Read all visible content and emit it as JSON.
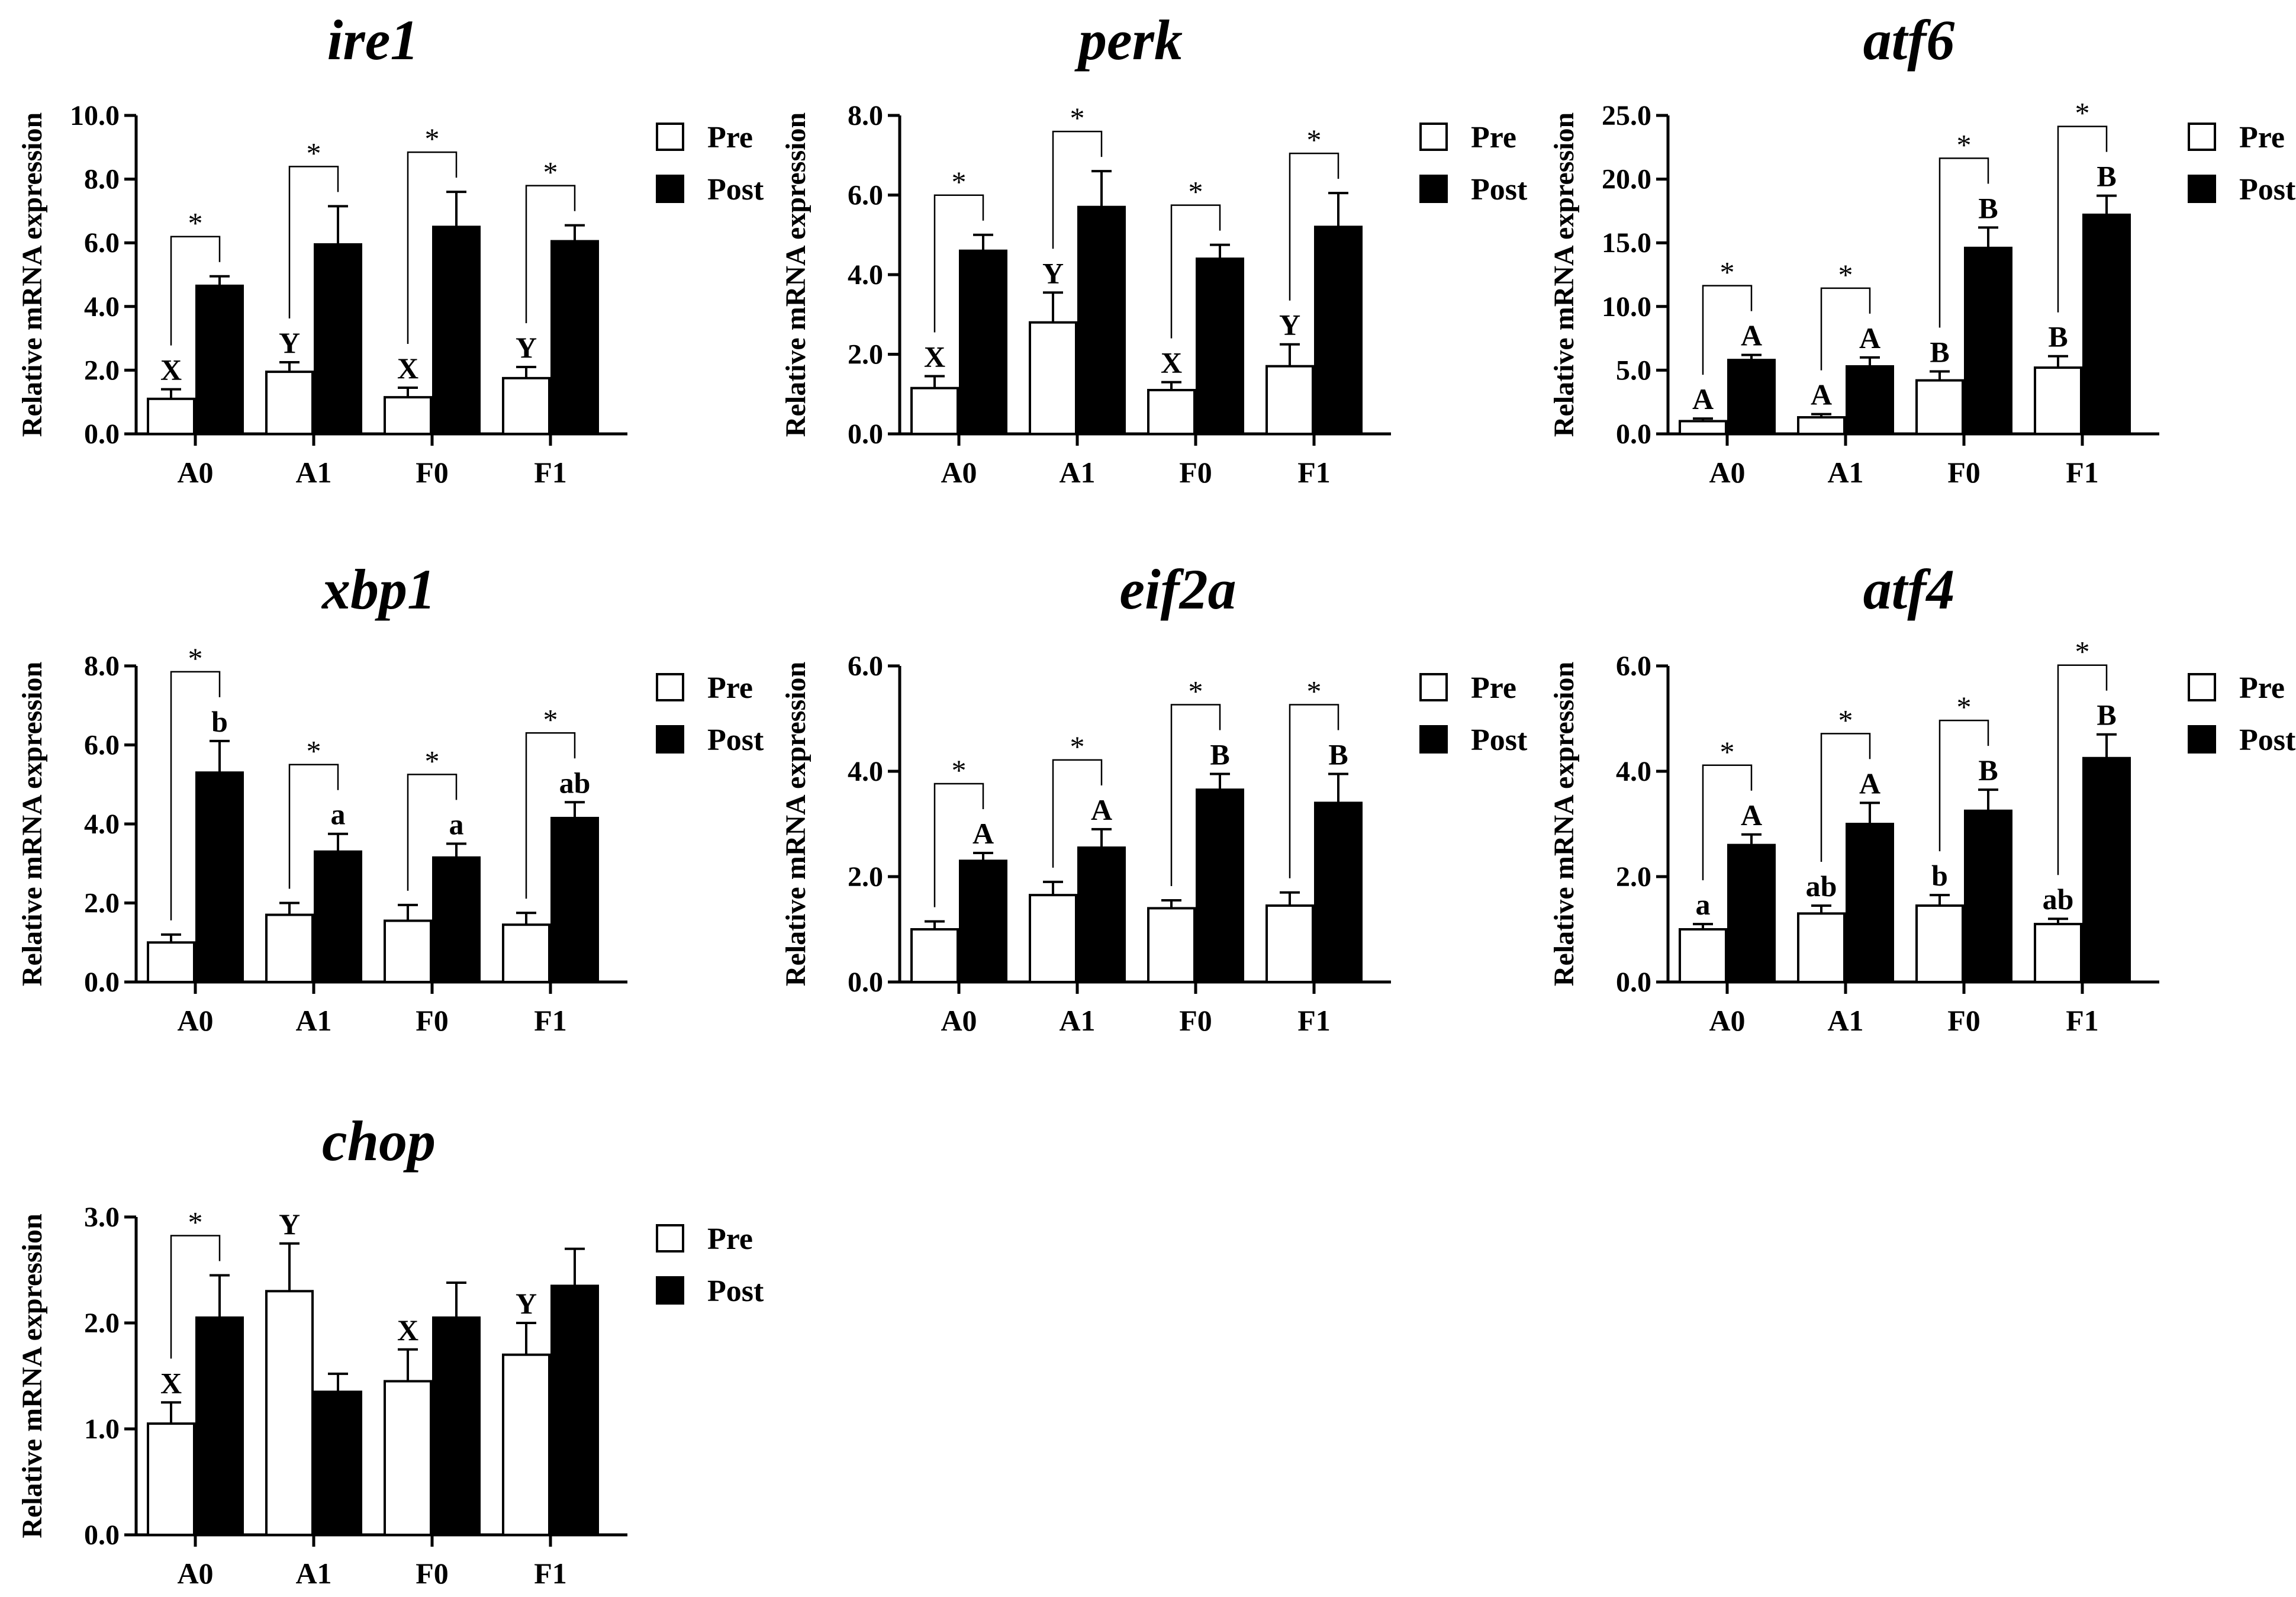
{
  "legend": {
    "pre": "Pre",
    "post": "Post"
  },
  "ylabel": "Relative mRNA expression",
  "colors": {
    "pre": "#ffffff",
    "post": "#000000",
    "stroke": "#000000"
  },
  "chart_data": [
    {
      "type": "bar",
      "title": "ire1",
      "ylabel": "Relative mRNA expression",
      "categories": [
        "A0",
        "A1",
        "F0",
        "F1"
      ],
      "ylim": [
        0,
        10
      ],
      "ticks": [
        "0.0",
        "2.0",
        "4.0",
        "6.0",
        "8.0",
        "10.0"
      ],
      "series": [
        {
          "name": "Pre",
          "values": [
            1.1,
            1.95,
            1.15,
            1.75
          ],
          "errors": [
            0.3,
            0.3,
            0.3,
            0.35
          ],
          "labels": [
            "X",
            "Y",
            "X",
            "Y"
          ]
        },
        {
          "name": "Post",
          "values": [
            4.65,
            5.95,
            6.5,
            6.05
          ],
          "errors": [
            0.3,
            1.2,
            1.1,
            0.5
          ],
          "labels": [
            "",
            "",
            "",
            ""
          ]
        }
      ],
      "significance": [
        "*",
        "*",
        "*",
        "*"
      ]
    },
    {
      "type": "bar",
      "title": "perk",
      "ylabel": "Relative mRNA expression",
      "categories": [
        "A0",
        "A1",
        "F0",
        "F1"
      ],
      "ylim": [
        0,
        8
      ],
      "ticks": [
        "0.0",
        "2.0",
        "4.0",
        "6.0",
        "8.0"
      ],
      "series": [
        {
          "name": "Pre",
          "values": [
            1.15,
            2.8,
            1.1,
            1.7
          ],
          "errors": [
            0.3,
            0.75,
            0.2,
            0.55
          ],
          "labels": [
            "X",
            "Y",
            "X",
            "Y"
          ]
        },
        {
          "name": "Post",
          "values": [
            4.6,
            5.7,
            4.4,
            5.2
          ],
          "errors": [
            0.4,
            0.9,
            0.35,
            0.85
          ],
          "labels": [
            "",
            "",
            "",
            ""
          ]
        }
      ],
      "significance": [
        "*",
        "*",
        "*",
        "*"
      ]
    },
    {
      "type": "bar",
      "title": "atf6",
      "ylabel": "Relative mRNA expression",
      "categories": [
        "A0",
        "A1",
        "F0",
        "F1"
      ],
      "ylim": [
        0,
        25
      ],
      "ticks": [
        "0.0",
        "5.0",
        "10.0",
        "15.0",
        "20.0",
        "25.0"
      ],
      "series": [
        {
          "name": "Pre",
          "values": [
            1.0,
            1.3,
            4.2,
            5.2
          ],
          "errors": [
            0.2,
            0.25,
            0.7,
            0.9
          ],
          "labels": [
            "A",
            "A",
            "B",
            "B"
          ]
        },
        {
          "name": "Post",
          "values": [
            5.8,
            5.3,
            14.6,
            17.2
          ],
          "errors": [
            0.4,
            0.7,
            1.6,
            1.5
          ],
          "labels": [
            "A",
            "A",
            "B",
            "B"
          ]
        }
      ],
      "significance": [
        "*",
        "*",
        "*",
        "*"
      ]
    },
    {
      "type": "bar",
      "title": "xbp1",
      "ylabel": "Relative mRNA expression",
      "categories": [
        "A0",
        "A1",
        "F0",
        "F1"
      ],
      "ylim": [
        0,
        8
      ],
      "ticks": [
        "0.0",
        "2.0",
        "4.0",
        "6.0",
        "8.0"
      ],
      "series": [
        {
          "name": "Pre",
          "values": [
            1.0,
            1.7,
            1.55,
            1.45
          ],
          "errors": [
            0.2,
            0.3,
            0.4,
            0.3
          ],
          "labels": [
            "",
            "",
            "",
            ""
          ]
        },
        {
          "name": "Post",
          "values": [
            5.3,
            3.3,
            3.15,
            4.15
          ],
          "errors": [
            0.8,
            0.45,
            0.35,
            0.4
          ],
          "labels": [
            "b",
            "a",
            "a",
            "ab"
          ]
        }
      ],
      "significance": [
        "*",
        "*",
        "*",
        "*"
      ]
    },
    {
      "type": "bar",
      "title": "eif2a",
      "ylabel": "Relative mRNA expression",
      "categories": [
        "A0",
        "A1",
        "F0",
        "F1"
      ],
      "ylim": [
        0,
        6
      ],
      "ticks": [
        "0.0",
        "2.0",
        "4.0",
        "6.0"
      ],
      "series": [
        {
          "name": "Pre",
          "values": [
            1.0,
            1.65,
            1.4,
            1.45
          ],
          "errors": [
            0.15,
            0.25,
            0.15,
            0.25
          ],
          "labels": [
            "",
            "",
            "",
            ""
          ]
        },
        {
          "name": "Post",
          "values": [
            2.3,
            2.55,
            3.65,
            3.4
          ],
          "errors": [
            0.15,
            0.35,
            0.3,
            0.55
          ],
          "labels": [
            "A",
            "A",
            "B",
            "B"
          ]
        }
      ],
      "significance": [
        "*",
        "*",
        "*",
        "*"
      ]
    },
    {
      "type": "bar",
      "title": "atf4",
      "ylabel": "Relative mRNA expression",
      "categories": [
        "A0",
        "A1",
        "F0",
        "F1"
      ],
      "ylim": [
        0,
        6
      ],
      "ticks": [
        "0.0",
        "2.0",
        "4.0",
        "6.0"
      ],
      "series": [
        {
          "name": "Pre",
          "values": [
            1.0,
            1.3,
            1.45,
            1.1
          ],
          "errors": [
            0.1,
            0.15,
            0.2,
            0.1
          ],
          "labels": [
            "a",
            "ab",
            "b",
            "ab"
          ]
        },
        {
          "name": "Post",
          "values": [
            2.6,
            3.0,
            3.25,
            4.25
          ],
          "errors": [
            0.2,
            0.4,
            0.4,
            0.45
          ],
          "labels": [
            "A",
            "A",
            "B",
            "B"
          ]
        }
      ],
      "significance": [
        "*",
        "*",
        "*",
        "*"
      ]
    },
    {
      "type": "bar",
      "title": "chop",
      "ylabel": "Relative mRNA expression",
      "categories": [
        "A0",
        "A1",
        "F0",
        "F1"
      ],
      "ylim": [
        0,
        3
      ],
      "ticks": [
        "0.0",
        "1.0",
        "2.0",
        "3.0"
      ],
      "series": [
        {
          "name": "Pre",
          "values": [
            1.05,
            2.3,
            1.45,
            1.7
          ],
          "errors": [
            0.2,
            0.45,
            0.3,
            0.3
          ],
          "labels": [
            "X",
            "Y",
            "X",
            "Y"
          ]
        },
        {
          "name": "Post",
          "values": [
            2.05,
            1.35,
            2.05,
            2.35
          ],
          "errors": [
            0.4,
            0.17,
            0.33,
            0.35
          ],
          "labels": [
            "",
            "",
            "",
            ""
          ]
        }
      ],
      "significance": [
        "*",
        "",
        "",
        ""
      ]
    }
  ]
}
